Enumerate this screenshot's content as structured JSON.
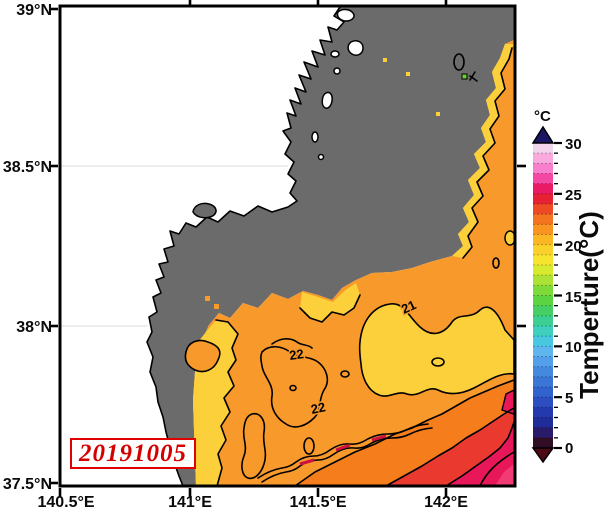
{
  "figure": {
    "date_stamp": "20191005",
    "axes": {
      "lat": [
        "39°N",
        "38.5°N",
        "38°N",
        "37.5°N"
      ],
      "lon": [
        "140.5°E",
        "141°E",
        "141.5°E",
        "142°E"
      ]
    },
    "colorbar": {
      "unit": "°C",
      "title": "Temperture(°C)",
      "ticks": [
        "30",
        "25",
        "20",
        "15",
        "10",
        "5",
        "0"
      ],
      "segments": [
        "#f2d4ec",
        "#f8a9de",
        "#f87fcd",
        "#f347a3",
        "#ea1a64",
        "#e62133",
        "#ee4a26",
        "#f4731f",
        "#f8941f",
        "#fbb623",
        "#fad02a",
        "#f7e42e",
        "#d8ea2e",
        "#abe233",
        "#7eda39",
        "#5cd341",
        "#45cf65",
        "#3bcf92",
        "#3ecfbe",
        "#47c8e0",
        "#5fb6ee",
        "#549fe9",
        "#4489df",
        "#3b76d6",
        "#3162cd",
        "#2c4ec0",
        "#2539ae",
        "#1f2d99",
        "#2a1a6a",
        "#300e24"
      ],
      "over_arrow": "#1c1666",
      "under_arrow": "#4c0a14"
    },
    "map": {
      "contour_labels": [
        "21",
        "22",
        "22"
      ],
      "colors": {
        "land": "#ffffff",
        "no_data": "#6b6b6b",
        "sst_21": "#fcd03a",
        "sst_22": "#f8992b",
        "sst_23": "#f57d1c",
        "sst_24": "#ea3a30",
        "sst_25": "#e8175a",
        "sst_26": "#f23b74",
        "green_speck": "#6bd332"
      }
    }
  },
  "chart_data": {
    "type": "heatmap",
    "title": "",
    "date": "20191005",
    "x": {
      "unit": "°E",
      "ticks": [
        140.5,
        141,
        141.5,
        142
      ],
      "range": [
        140.5,
        142.28
      ]
    },
    "y": {
      "unit": "°N",
      "ticks": [
        37.5,
        38,
        38.5,
        39
      ],
      "range": [
        37.5,
        39
      ]
    },
    "z": {
      "label": "Temperture(°C)",
      "range": [
        0,
        30
      ],
      "major_tick_step": 5,
      "minor_tick_step": 1
    },
    "contour_interval": 1,
    "contour_labels_visible": [
      21,
      22,
      22
    ],
    "regions": [
      {
        "name": "land",
        "render": "white"
      },
      {
        "name": "cloud-no-data",
        "render": "gray"
      },
      {
        "name": "coastal-band",
        "approx_sst_c": 21
      },
      {
        "name": "central-offshore",
        "approx_sst_c": 22
      },
      {
        "name": "southeast-warm-front",
        "approx_sst_c": "23-26"
      }
    ]
  }
}
